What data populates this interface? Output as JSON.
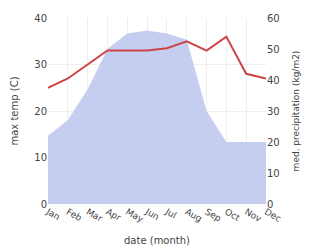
{
  "chart_data": {
    "type": "line",
    "xlabel": "date (month)",
    "ylabel": "max temp (C)",
    "y2label": "med. precipitation (kg/m2)",
    "categories": [
      "Jan",
      "Feb",
      "Mar",
      "Apr",
      "May",
      "Jun",
      "Jul",
      "Aug",
      "Sep",
      "Oct",
      "Nov",
      "Dec"
    ],
    "series": [
      {
        "type": "area",
        "axis": "y2",
        "color": "#c5cef0",
        "values": [
          22,
          27,
          37,
          50,
          55,
          56,
          55,
          53,
          30,
          20,
          20,
          20
        ]
      },
      {
        "type": "line",
        "axis": "y",
        "color": "#cc4444",
        "values": [
          25,
          27,
          30,
          33,
          33,
          33,
          33.5,
          35,
          33,
          36,
          28,
          27
        ]
      }
    ],
    "ylim": [
      0,
      40
    ],
    "yticks": [
      0,
      10,
      20,
      30,
      40
    ],
    "y2lim": [
      0,
      60
    ],
    "y2ticks": [
      0,
      10,
      20,
      30,
      40,
      50,
      60
    ],
    "grid": true,
    "legend": false
  }
}
